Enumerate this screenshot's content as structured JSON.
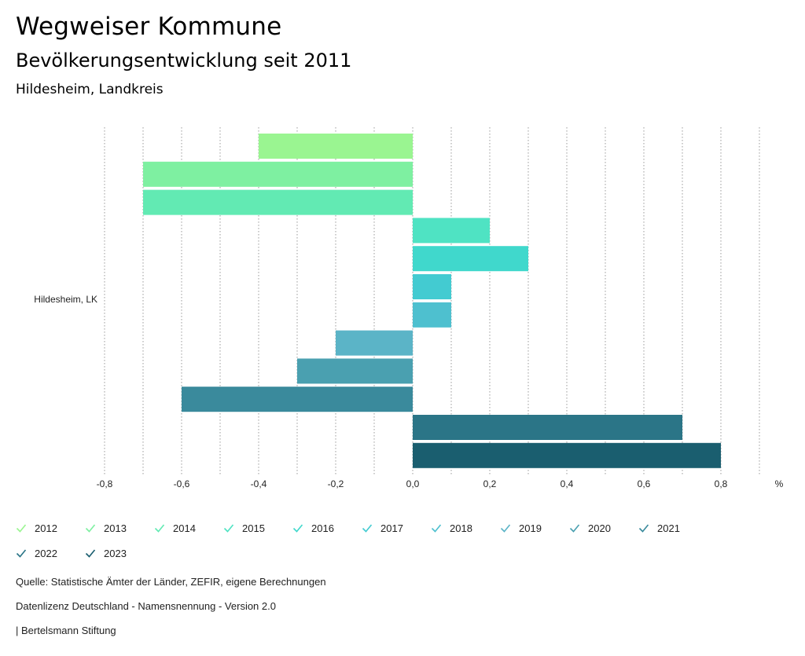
{
  "header": {
    "title": "Wegweiser Kommune",
    "subtitle": "Bevölkerungsentwicklung seit 2011",
    "region": "Hildesheim, Landkreis"
  },
  "chart_data": {
    "type": "bar",
    "orientation": "horizontal",
    "categories": [
      "Hildesheim, LK"
    ],
    "series": [
      {
        "name": "2012",
        "values": [
          -0.4
        ],
        "color": "#9af591"
      },
      {
        "name": "2013",
        "values": [
          -0.7
        ],
        "color": "#7ef0a1"
      },
      {
        "name": "2014",
        "values": [
          -0.7
        ],
        "color": "#62eab3"
      },
      {
        "name": "2015",
        "values": [
          0.2
        ],
        "color": "#4fe3c3"
      },
      {
        "name": "2016",
        "values": [
          0.3
        ],
        "color": "#40d8cc"
      },
      {
        "name": "2017",
        "values": [
          0.1
        ],
        "color": "#43cbd1"
      },
      {
        "name": "2018",
        "values": [
          0.1
        ],
        "color": "#4ec0cf"
      },
      {
        "name": "2019",
        "values": [
          -0.2
        ],
        "color": "#5bb4c7"
      },
      {
        "name": "2020",
        "values": [
          -0.3
        ],
        "color": "#4aa0b0"
      },
      {
        "name": "2021",
        "values": [
          -0.6
        ],
        "color": "#3a8a9c"
      },
      {
        "name": "2022",
        "values": [
          0.7
        ],
        "color": "#2b7587"
      },
      {
        "name": "2023",
        "values": [
          0.8
        ],
        "color": "#1a5e6f"
      }
    ],
    "xlim": [
      -0.8,
      0.9
    ],
    "xticks": [
      -0.8,
      -0.6,
      -0.4,
      -0.2,
      0.0,
      0.2,
      0.4,
      0.6,
      0.8
    ],
    "xtick_labels": [
      "-0,8",
      "-0,6",
      "-0,4",
      "-0,2",
      "0,0",
      "0,2",
      "0,4",
      "0,6",
      "0,8"
    ],
    "unit_label": "%",
    "grid": true,
    "legend_position": "bottom"
  },
  "footer": {
    "source": "Quelle: Statistische Ämter der Länder, ZEFIR, eigene Berechnungen",
    "license": "Datenlizenz Deutschland - Namensnennung - Version 2.0",
    "brand": "| Bertelsmann Stiftung"
  }
}
